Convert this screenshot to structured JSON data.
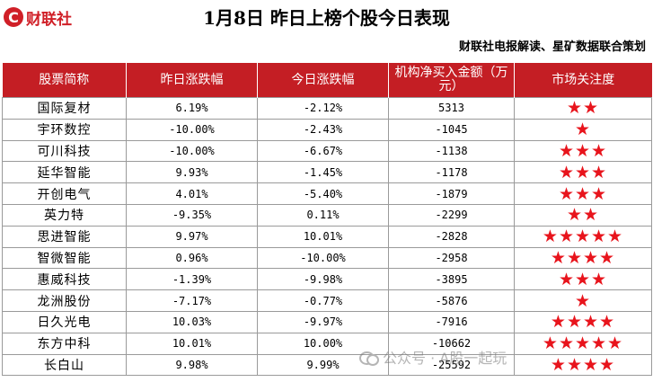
{
  "logo": {
    "mark": "C",
    "text": "财联社"
  },
  "title": "1月8日  昨日上榜个股今日表现",
  "subtitle": "财联社电报解读、星矿数据联合策划",
  "columns": [
    "股票简称",
    "昨日涨跌幅",
    "今日涨跌幅",
    "机构净买入金额（万元）",
    "市场关注度"
  ],
  "rows": [
    {
      "name": "国际复材",
      "yesterday": "6.19%",
      "today": "-2.12%",
      "net_buy": "5313",
      "stars": "★★"
    },
    {
      "name": "宇环数控",
      "yesterday": "-10.00%",
      "today": "-2.43%",
      "net_buy": "-1045",
      "stars": "★"
    },
    {
      "name": "可川科技",
      "yesterday": "-10.00%",
      "today": "-6.67%",
      "net_buy": "-1138",
      "stars": "★★★"
    },
    {
      "name": "延华智能",
      "yesterday": "9.93%",
      "today": "-1.45%",
      "net_buy": "-1178",
      "stars": "★★★"
    },
    {
      "name": "开创电气",
      "yesterday": "4.01%",
      "today": "-5.40%",
      "net_buy": "-1879",
      "stars": "★★★"
    },
    {
      "name": "英力特",
      "yesterday": "-9.35%",
      "today": "0.11%",
      "net_buy": "-2299",
      "stars": "★★"
    },
    {
      "name": "思进智能",
      "yesterday": "9.97%",
      "today": "10.01%",
      "net_buy": "-2828",
      "stars": "★★★★★"
    },
    {
      "name": "智微智能",
      "yesterday": "0.96%",
      "today": "-10.00%",
      "net_buy": "-2958",
      "stars": "★★★★"
    },
    {
      "name": "惠威科技",
      "yesterday": "-1.39%",
      "today": "-9.98%",
      "net_buy": "-3895",
      "stars": "★★★"
    },
    {
      "name": "龙洲股份",
      "yesterday": "-7.17%",
      "today": "-0.77%",
      "net_buy": "-5876",
      "stars": "★"
    },
    {
      "name": "日久光电",
      "yesterday": "10.03%",
      "today": "-9.97%",
      "net_buy": "-7916",
      "stars": "★★★★"
    },
    {
      "name": "东方中科",
      "yesterday": "10.01%",
      "today": "10.00%",
      "net_buy": "-10662",
      "stars": "★★★★★"
    },
    {
      "name": "长白山",
      "yesterday": "9.98%",
      "today": "9.99%",
      "net_buy": "-25592",
      "stars": "★★★★"
    }
  ],
  "watermark": "公众号 · A股一起玩",
  "colors": {
    "header_bg": "#c41e24",
    "star": "#e8141c",
    "brand": "#d01f27"
  }
}
